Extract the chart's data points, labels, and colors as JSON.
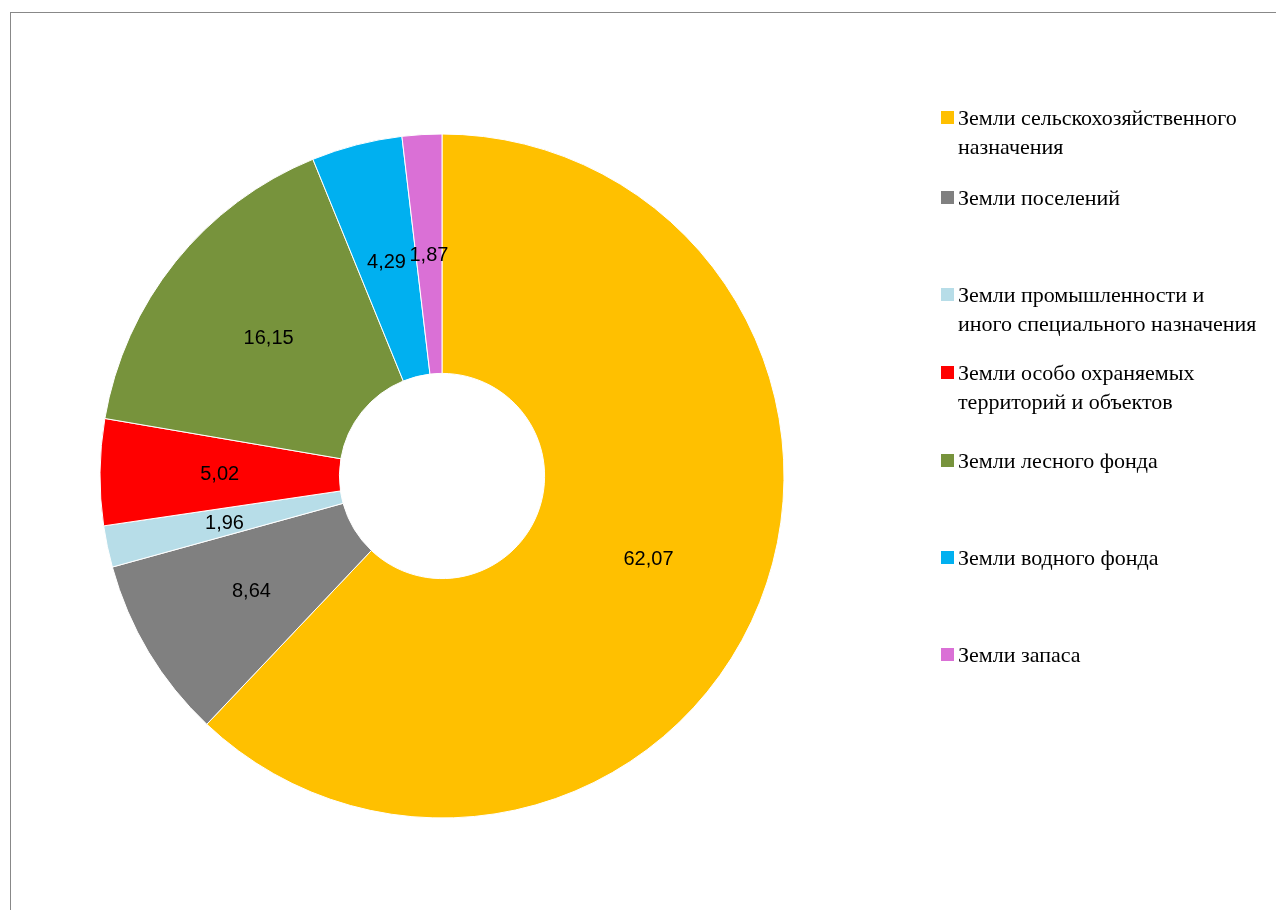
{
  "chart_data": {
    "type": "donut",
    "categories": [
      "Земли сельскохозяйственного назначения",
      "Земли поселений",
      "Земли промышленности и иного специального назначения",
      "Земли особо охраняемых территорий и объектов",
      "Земли лесного фонда",
      "Земли водного фонда",
      "Земли запаса"
    ],
    "values": [
      62.07,
      8.64,
      1.96,
      5.02,
      16.15,
      4.29,
      1.87
    ],
    "value_labels": [
      "62,07",
      "8,64",
      "1,96",
      "5,02",
      "16,15",
      "4,29",
      "1,87"
    ],
    "colors": [
      "#ffc000",
      "#808080",
      "#b7dde8",
      "#ff0000",
      "#77933c",
      "#00b0f0",
      "#da70d6"
    ],
    "legend": "right"
  }
}
